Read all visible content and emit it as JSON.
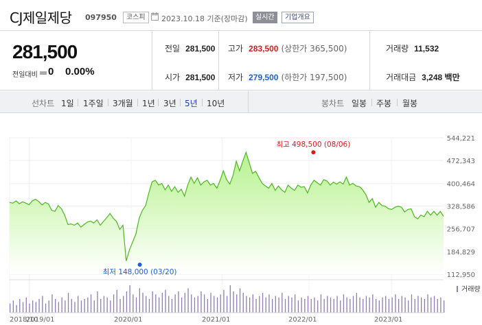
{
  "header": {
    "company": "CJ제일제당",
    "code": "097950",
    "market": "코스피",
    "date": "2023.10.18 기준(장마감)",
    "realtime": "실시간",
    "company_info": "기업개요"
  },
  "quote": {
    "price": "281,500",
    "change_label": "전일대비",
    "change": "0",
    "change_pct": "0.00%",
    "prev_close": {
      "label": "전일",
      "value": "281,500"
    },
    "open": {
      "label": "시가",
      "value": "281,500"
    },
    "high": {
      "label": "고가",
      "value": "283,500",
      "limit": "(상한가 365,500)"
    },
    "low": {
      "label": "저가",
      "value": "279,500",
      "limit": "(하한가 197,500)"
    },
    "volume": {
      "label": "거래량",
      "value": "11,532"
    },
    "amount": {
      "label": "거래대금",
      "value": "3,248 백만"
    }
  },
  "period": {
    "line_label": "선차트",
    "line_options": [
      "1일",
      "1주일",
      "3개월",
      "1년",
      "3년",
      "5년",
      "10년"
    ],
    "selected": "5년",
    "candle_label": "봉차트",
    "candle_options": [
      "일봉",
      "주봉",
      "월봉"
    ]
  },
  "colors": {
    "up": "#d81a1a",
    "down": "#1a5fd8",
    "line": "#4bb81e",
    "fill_top": "#b7f28f",
    "fill_bottom": "#ffffff",
    "volume": "#8e7bb8"
  },
  "chart_data": {
    "type": "area",
    "x_ticks": [
      "2018/10",
      "2019/01",
      "2020/01",
      "2021/01",
      "2022/01",
      "2023/01"
    ],
    "y_ticks": [
      "544,221",
      "472,343",
      "400,464",
      "328,586",
      "256,707",
      "184,829",
      "112,950"
    ],
    "ylim": [
      112950,
      544221
    ],
    "volume_label": "거래량",
    "high_annotation": "최고 498,500 (08/06)",
    "low_annotation": "최저 148,000 (03/20)",
    "high_point": {
      "t": 0.7,
      "value": 498500
    },
    "low_point": {
      "t": 0.3,
      "value": 148000
    },
    "values": [
      340000,
      338000,
      345000,
      336000,
      342000,
      338000,
      333000,
      345000,
      350000,
      343000,
      332000,
      340000,
      335000,
      315000,
      312000,
      330000,
      320000,
      300000,
      270000,
      272000,
      268000,
      275000,
      262000,
      270000,
      278000,
      281000,
      275000,
      285000,
      268000,
      280000,
      292000,
      305000,
      290000,
      280000,
      255000,
      268000,
      155000,
      190000,
      215000,
      240000,
      290000,
      315000,
      330000,
      370000,
      405000,
      410000,
      395000,
      400000,
      380000,
      395000,
      375000,
      390000,
      372000,
      382000,
      360000,
      395000,
      420000,
      400000,
      418000,
      395000,
      405000,
      410000,
      395000,
      400000,
      385000,
      410000,
      440000,
      412000,
      398000,
      425000,
      470000,
      440000,
      470000,
      498500,
      465000,
      432000,
      438000,
      418000,
      400000,
      392000,
      385000,
      400000,
      378000,
      392000,
      380000,
      372000,
      395000,
      385000,
      378000,
      395000,
      388000,
      390000,
      370000,
      395000,
      410000,
      402000,
      395000,
      412000,
      408000,
      395000,
      404000,
      398000,
      405000,
      398000,
      420000,
      395000,
      400000,
      392000,
      390000,
      380000,
      365000,
      340000,
      352000,
      325000,
      340000,
      330000,
      328000,
      320000,
      318000,
      325000,
      328000,
      325000,
      310000,
      318000,
      320000,
      295000,
      288000,
      300000,
      295000,
      312000,
      300000,
      312000,
      300000,
      312000,
      296000
    ],
    "volumes": [
      6,
      8,
      5,
      9,
      7,
      10,
      6,
      8,
      7,
      9,
      11,
      6,
      8,
      12,
      9,
      7,
      10,
      8,
      13,
      9,
      7,
      11,
      8,
      9,
      10,
      12,
      8,
      14,
      9,
      11,
      10,
      8,
      12,
      15,
      9,
      11,
      14,
      18,
      12,
      10,
      16,
      13,
      11,
      9,
      14,
      12,
      10,
      13,
      15,
      11,
      9,
      12,
      14,
      10,
      13,
      16,
      12,
      10,
      11,
      14,
      12,
      9,
      13,
      11,
      10,
      12,
      15,
      11,
      18,
      14,
      12,
      16,
      13,
      11,
      10,
      12,
      9,
      11,
      13,
      10,
      12,
      9,
      11,
      10,
      13,
      9,
      11,
      10,
      12,
      8,
      10,
      9,
      11,
      9,
      10,
      8,
      12,
      9,
      11,
      10,
      9,
      11,
      8,
      12,
      10,
      9,
      11,
      13,
      10,
      9,
      11,
      10,
      12,
      9,
      8,
      10,
      11,
      9,
      10,
      12,
      9,
      11,
      10,
      8,
      12,
      9,
      11,
      10,
      9,
      12,
      10,
      11,
      9,
      10,
      8
    ]
  }
}
